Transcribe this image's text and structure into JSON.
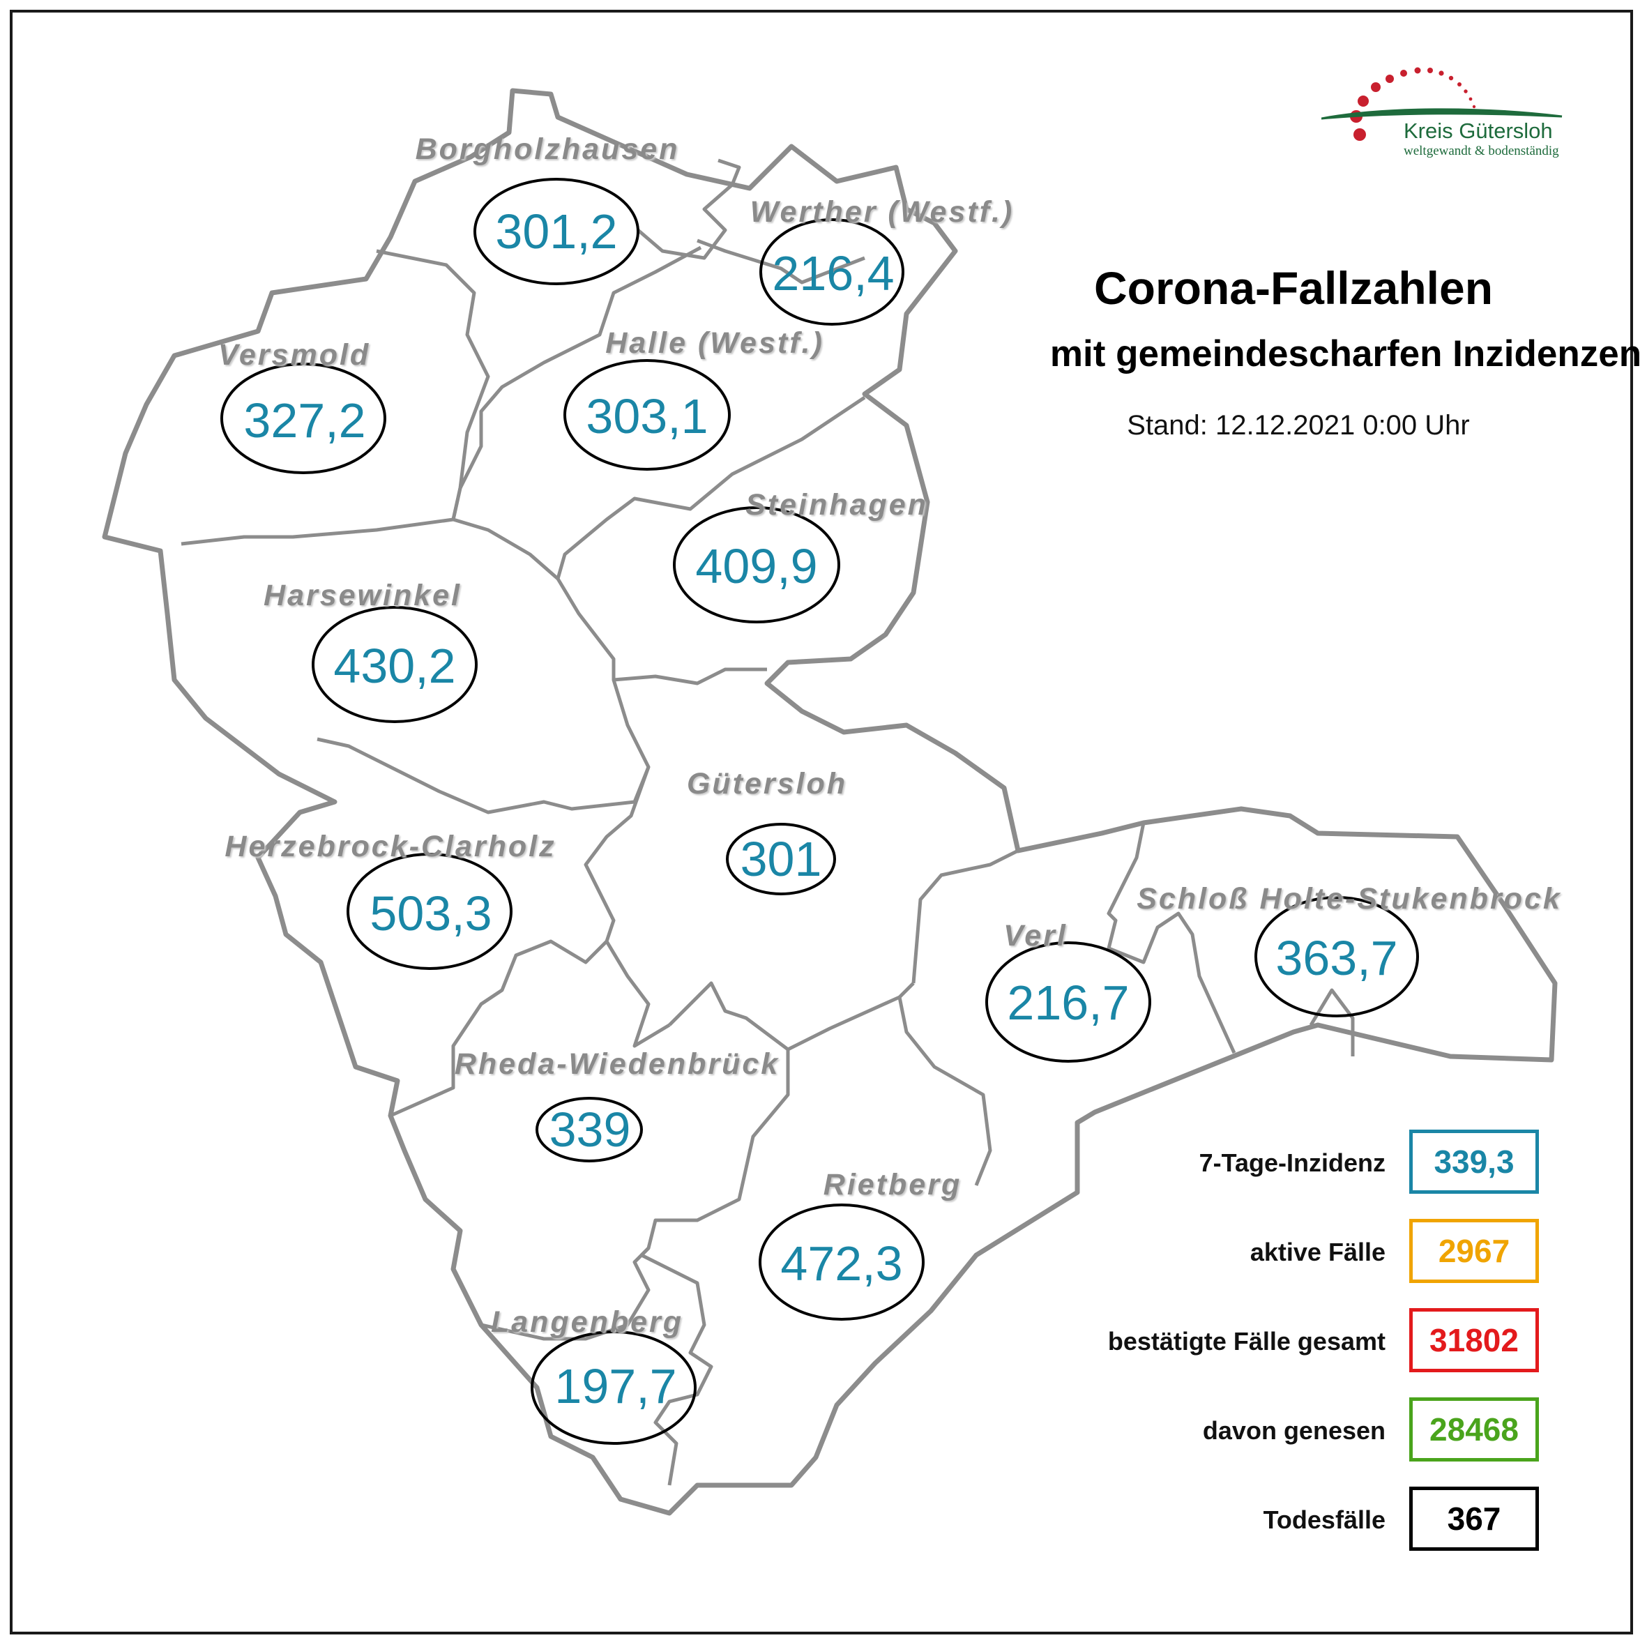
{
  "header": {
    "title": "Corona-Fallzahlen",
    "subtitle": "mit gemeindescharfen Inzidenzen",
    "stand": "Stand: 12.12.2021 0:00 Uhr"
  },
  "logo": {
    "name": "Kreis Gütersloh",
    "tagline": "weltgewandt & bodenständig",
    "colors": {
      "dots": "#c8202e",
      "swoosh": "#1e6b3c"
    }
  },
  "municipalities": [
    {
      "name": "Borgholzhausen",
      "value": "301,2"
    },
    {
      "name": "Werther (Westf.)",
      "value": "216,4"
    },
    {
      "name": "Versmold",
      "value": "327,2"
    },
    {
      "name": "Halle (Westf.)",
      "value": "303,1"
    },
    {
      "name": "Steinhagen",
      "value": "409,9"
    },
    {
      "name": "Harsewinkel",
      "value": "430,2"
    },
    {
      "name": "Gütersloh",
      "value": "301"
    },
    {
      "name": "Herzebrock-Clarholz",
      "value": "503,3"
    },
    {
      "name": "Verl",
      "value": "216,7"
    },
    {
      "name": "Schloß Holte-Stukenbrock",
      "value": "363,7"
    },
    {
      "name": "Rheda-Wiedenbrück",
      "value": "339"
    },
    {
      "name": "Rietberg",
      "value": "472,3"
    },
    {
      "name": "Langenberg",
      "value": "197,7"
    }
  ],
  "legend": [
    {
      "label": "7-Tage-Inzidenz",
      "value": "339,3",
      "color": "#1a86a6"
    },
    {
      "label": "aktive Fälle",
      "value": "2967",
      "color": "#f0a400"
    },
    {
      "label": "bestätigte Fälle gesamt",
      "value": "31802",
      "color": "#e31a1c"
    },
    {
      "label": "davon genesen",
      "value": "28468",
      "color": "#4aa41c"
    },
    {
      "label": "Todesfälle",
      "value": "367",
      "color": "#000000"
    }
  ],
  "colors": {
    "border": "#8c8c8c",
    "value_text": "#1a86a6",
    "name_text": "#8a8a8a"
  }
}
